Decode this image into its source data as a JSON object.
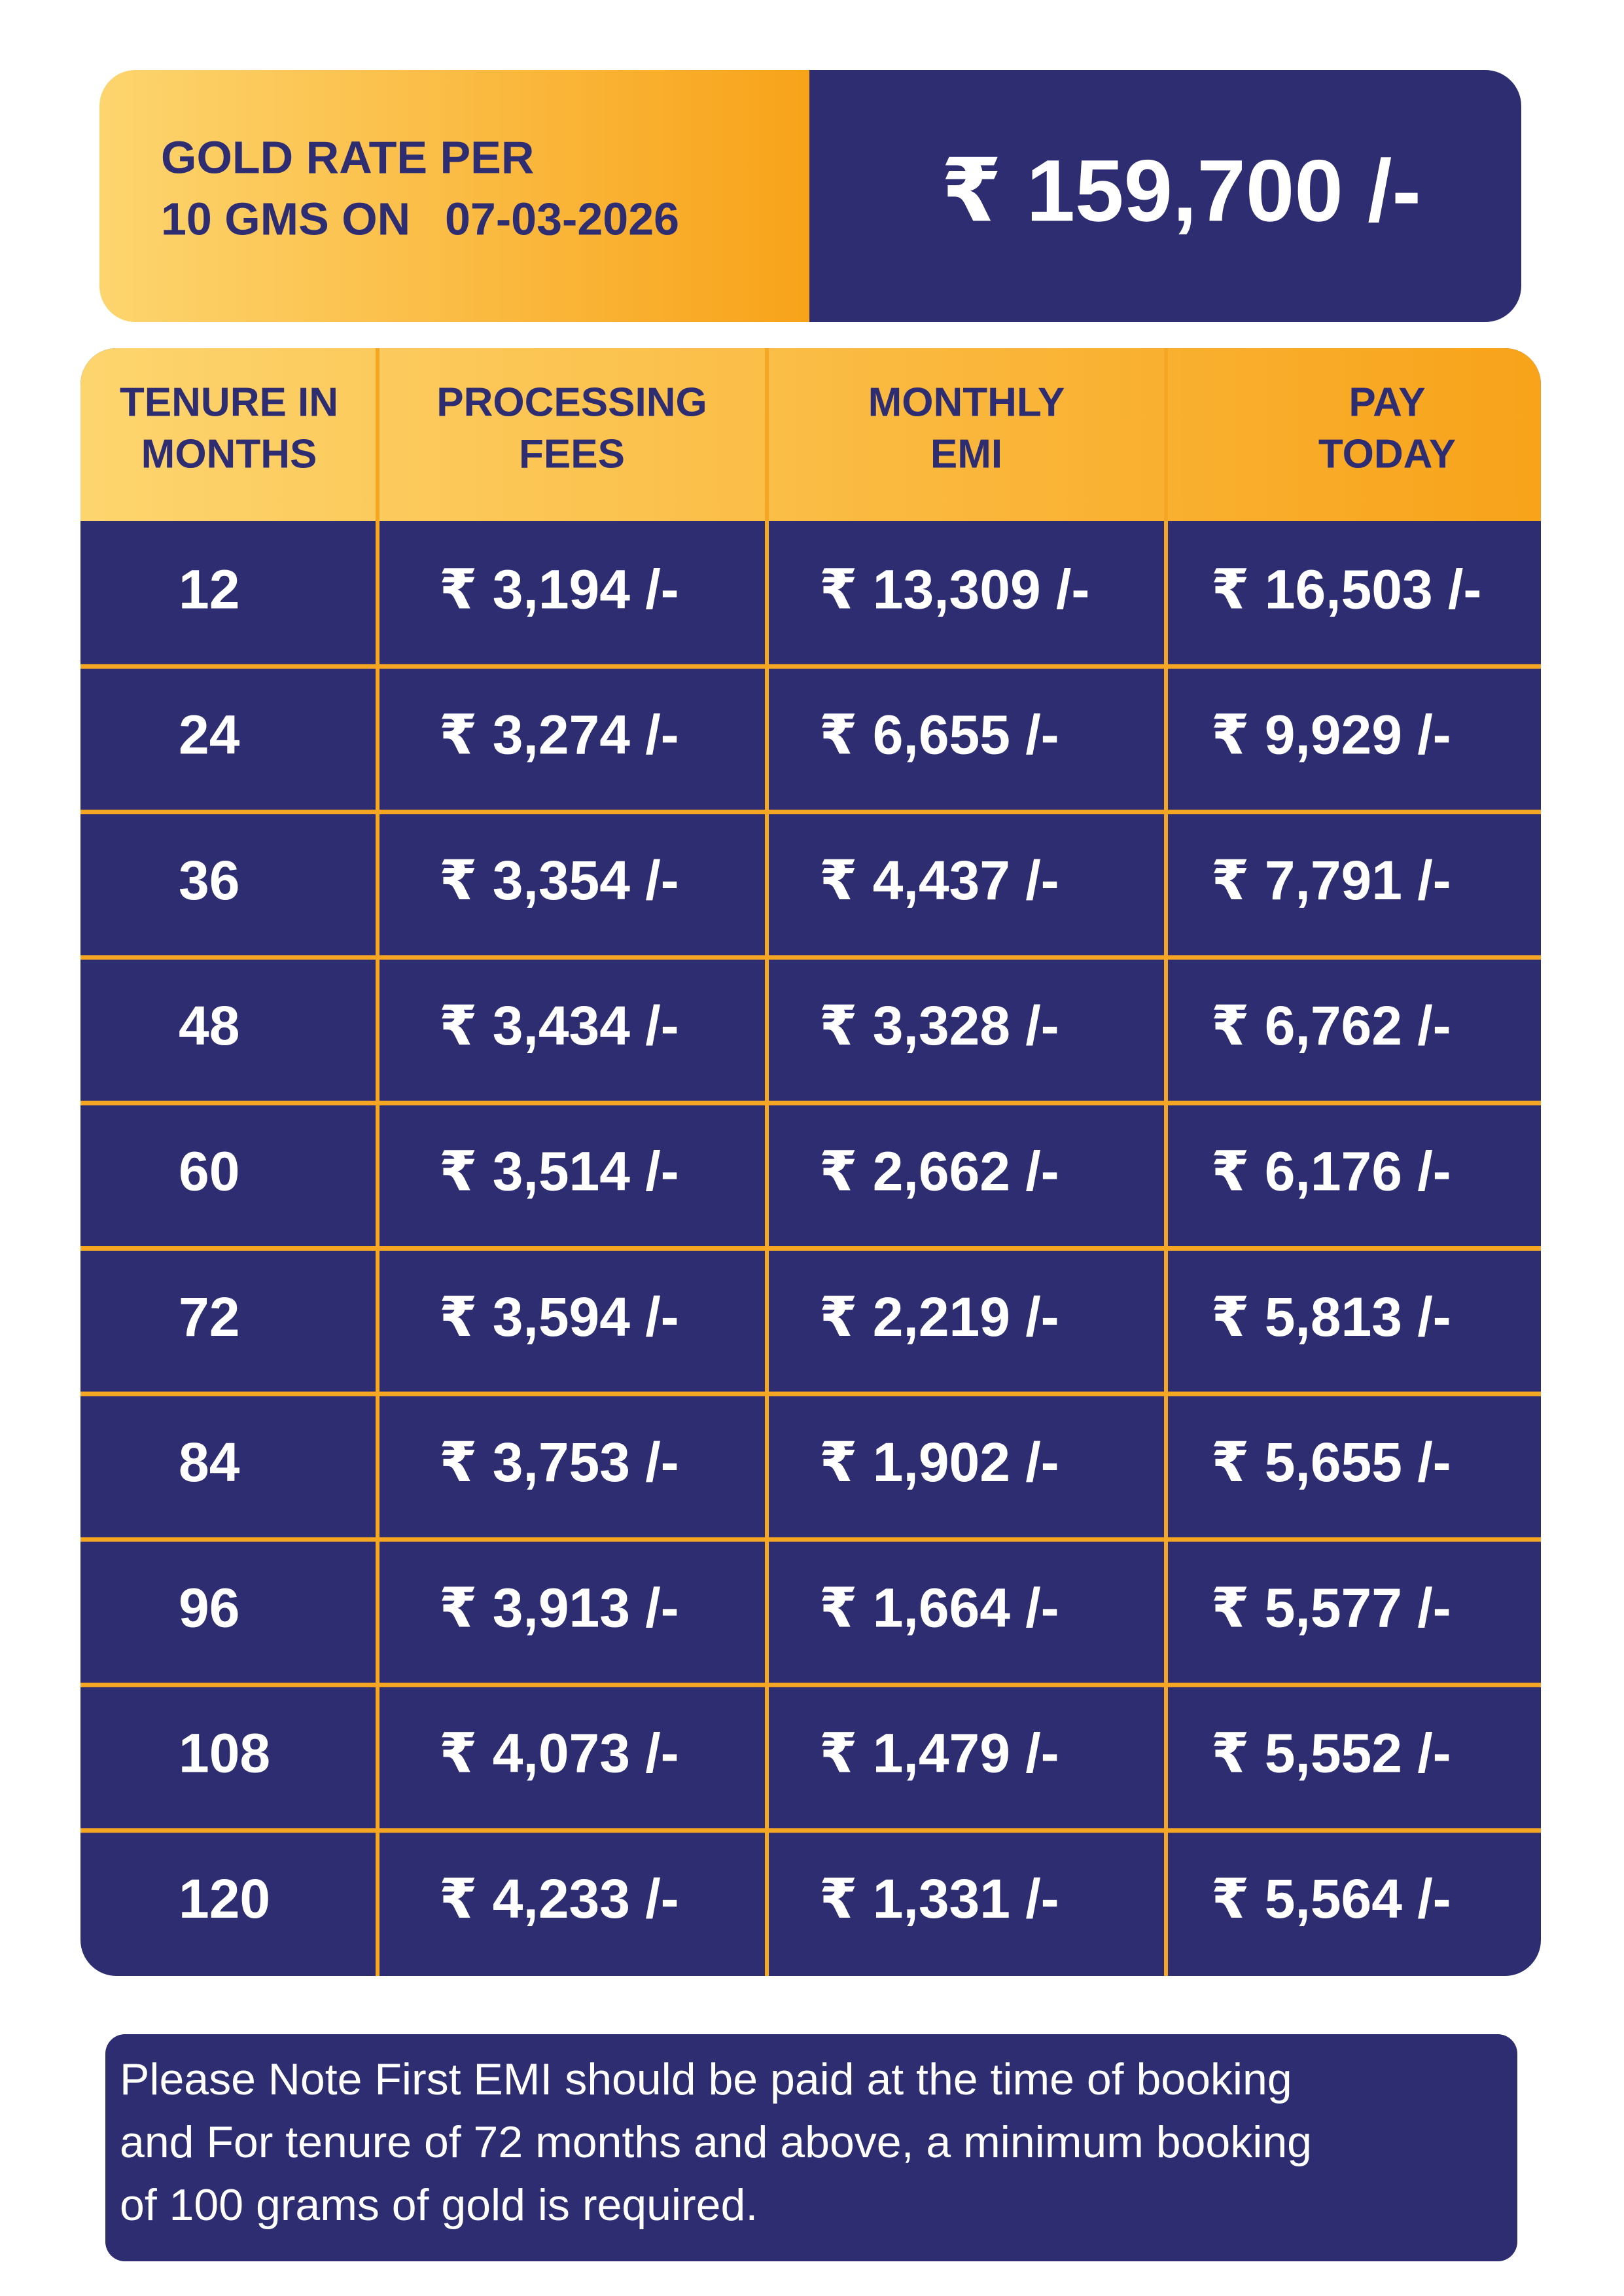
{
  "header": {
    "label": [
      "GOLD RATE PER",
      "10 GMS ON"
    ],
    "date": "07-03-2026",
    "rate": "₹ 159,700 /-"
  },
  "table": {
    "columns": [
      [
        "TENURE IN",
        "MONTHS"
      ],
      [
        "PROCESSING",
        "FEES"
      ],
      [
        "MONTHLY",
        "EMI"
      ],
      [
        "PAY",
        "TODAY"
      ]
    ],
    "rows": [
      [
        "12",
        "₹ 3,194 /-",
        "₹ 13,309 /-",
        "₹ 16,503 /-"
      ],
      [
        "24",
        "₹ 3,274 /-",
        "₹ 6,655 /-",
        "₹ 9,929 /-"
      ],
      [
        "36",
        "₹ 3,354 /-",
        "₹ 4,437 /-",
        "₹ 7,791 /-"
      ],
      [
        "48",
        "₹ 3,434 /-",
        "₹ 3,328 /-",
        "₹ 6,762 /-"
      ],
      [
        "60",
        "₹ 3,514 /-",
        "₹ 2,662 /-",
        "₹ 6,176 /-"
      ],
      [
        "72",
        "₹ 3,594 /-",
        "₹ 2,219 /-",
        "₹ 5,813 /-"
      ],
      [
        "84",
        "₹ 3,753 /-",
        "₹ 1,902 /-",
        "₹ 5,655 /-"
      ],
      [
        "96",
        "₹ 3,913 /-",
        "₹ 1,664 /-",
        "₹ 5,577 /-"
      ],
      [
        "108",
        "₹ 4,073 /-",
        "₹ 1,479 /-",
        "₹ 5,552 /-"
      ],
      [
        "120",
        "₹ 4,233 /-",
        "₹ 1,331 /-",
        "₹ 5,564 /-"
      ]
    ]
  },
  "note": [
    "Please Note First EMI should be paid at the time of booking",
    "and For tenure of 72 months and above, a minimum booking",
    "of 100 grams of gold is required."
  ]
}
